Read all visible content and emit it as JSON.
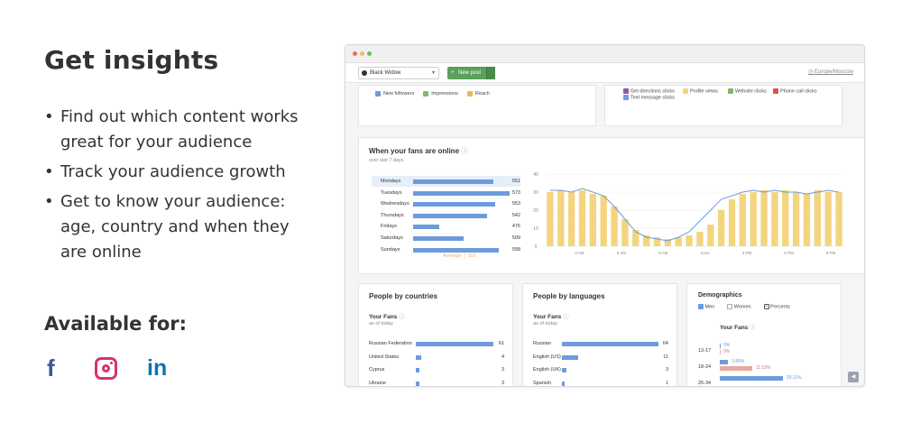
{
  "heading": "Get insights",
  "bullets": [
    "Find out which content works great for your audience",
    "Track your audience growth",
    "Get to know your audience: age, country and when they are online"
  ],
  "available_for": "Available for:",
  "social_icons": [
    "facebook-icon",
    "instagram-icon",
    "linkedin-icon"
  ],
  "app": {
    "profile_select": "Black Widow",
    "new_post": "New post",
    "timezone": "Europe/Moscow",
    "top_legend_left": [
      {
        "label": "New followers",
        "color": "#6d9bdb"
      },
      {
        "label": "Impressions",
        "color": "#7fb96a"
      },
      {
        "label": "Reach",
        "color": "#f0b35a"
      }
    ],
    "top_legend_right": [
      {
        "label": "Get directions clicks",
        "color": "#8e5aa8"
      },
      {
        "label": "Text message clicks",
        "color": "#6d9bdb"
      },
      {
        "label": "Profile views",
        "color": "#f2d27e"
      },
      {
        "label": "Website clicks",
        "color": "#7fb96a"
      },
      {
        "label": "Phone call clicks",
        "color": "#d9534f"
      }
    ],
    "online": {
      "title": "When your fans are online",
      "subtitle": "over last 7 days",
      "days": [
        {
          "label": "Mondays",
          "value": 551
        },
        {
          "label": "Tuesdays",
          "value": 573
        },
        {
          "label": "Wednesdays",
          "value": 553
        },
        {
          "label": "Thursdays",
          "value": 542
        },
        {
          "label": "Fridays",
          "value": 476
        },
        {
          "label": "Saturdays",
          "value": 509
        },
        {
          "label": "Sundays",
          "value": 558
        }
      ],
      "average_label": "Average",
      "average_value": "551"
    },
    "countries": {
      "title": "People by countries",
      "your_fans": "Your Fans",
      "as_of": "as of today",
      "rows": [
        {
          "label": "Russian Federation",
          "value": 61
        },
        {
          "label": "United States",
          "value": 4
        },
        {
          "label": "Cyprus",
          "value": 3
        },
        {
          "label": "Ukraine",
          "value": 3
        }
      ]
    },
    "languages": {
      "title": "People by languages",
      "your_fans": "Your Fans",
      "as_of": "as of today",
      "rows": [
        {
          "label": "Russian",
          "value": 64
        },
        {
          "label": "English (US)",
          "value": 11
        },
        {
          "label": "English (UK)",
          "value": 3
        },
        {
          "label": "Spanish",
          "value": 1
        }
      ]
    },
    "demographics": {
      "title": "Demographics",
      "legend": [
        "Men",
        "Women",
        "Percents"
      ],
      "your_fans": "Your Fans",
      "rows": [
        {
          "age": "13-17",
          "men": "0%",
          "women": "0%"
        },
        {
          "age": "18-24",
          "men": "3.80%",
          "women": "11.19%"
        },
        {
          "age": "25-34",
          "men": "29.11%",
          "women": ""
        }
      ]
    }
  },
  "chart_data": {
    "type": "bar",
    "title": "",
    "x_tick_labels": [
      "3 AM",
      "6 AM",
      "9 AM",
      "noon",
      "3 PM",
      "6 PM",
      "9 PM"
    ],
    "y_tick_labels": [
      "0",
      "10",
      "20",
      "30",
      "40"
    ],
    "ylim": [
      0,
      40
    ],
    "series": [
      {
        "values": [
          30,
          31,
          30,
          31,
          29,
          28,
          22,
          15,
          9,
          6,
          5,
          4,
          5,
          6,
          8,
          12,
          20,
          26,
          29,
          30,
          31,
          30,
          31,
          30,
          29,
          31,
          30,
          30
        ]
      }
    ],
    "line": [
      31,
      31,
      30,
      32,
      30,
      28,
      22,
      15,
      8,
      5,
      4,
      3,
      5,
      8,
      14,
      20,
      26,
      28,
      30,
      31,
      30,
      31,
      30,
      30,
      29,
      30,
      31,
      30
    ]
  }
}
